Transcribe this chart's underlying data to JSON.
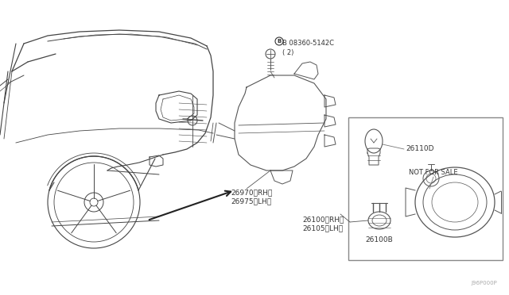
{
  "bg_color": "#ffffff",
  "fig_width": 6.4,
  "fig_height": 3.72,
  "dpi": 100,
  "line_color": "#555555",
  "car_line_color": "#444444",
  "text_color": "#333333",
  "label_color": "#555555",
  "bolt_label": "B 08360-5142C\n( 2)",
  "housing_label": "26970〈RH〉\n26975〈LH〉",
  "assy_label": "26100〈RH〉\n26105〈LH〉",
  "bulb_label": "26110D",
  "socket_label": "26100B",
  "not_for_sale": "NOT FOR SALE",
  "diagram_id": "J96P000P"
}
